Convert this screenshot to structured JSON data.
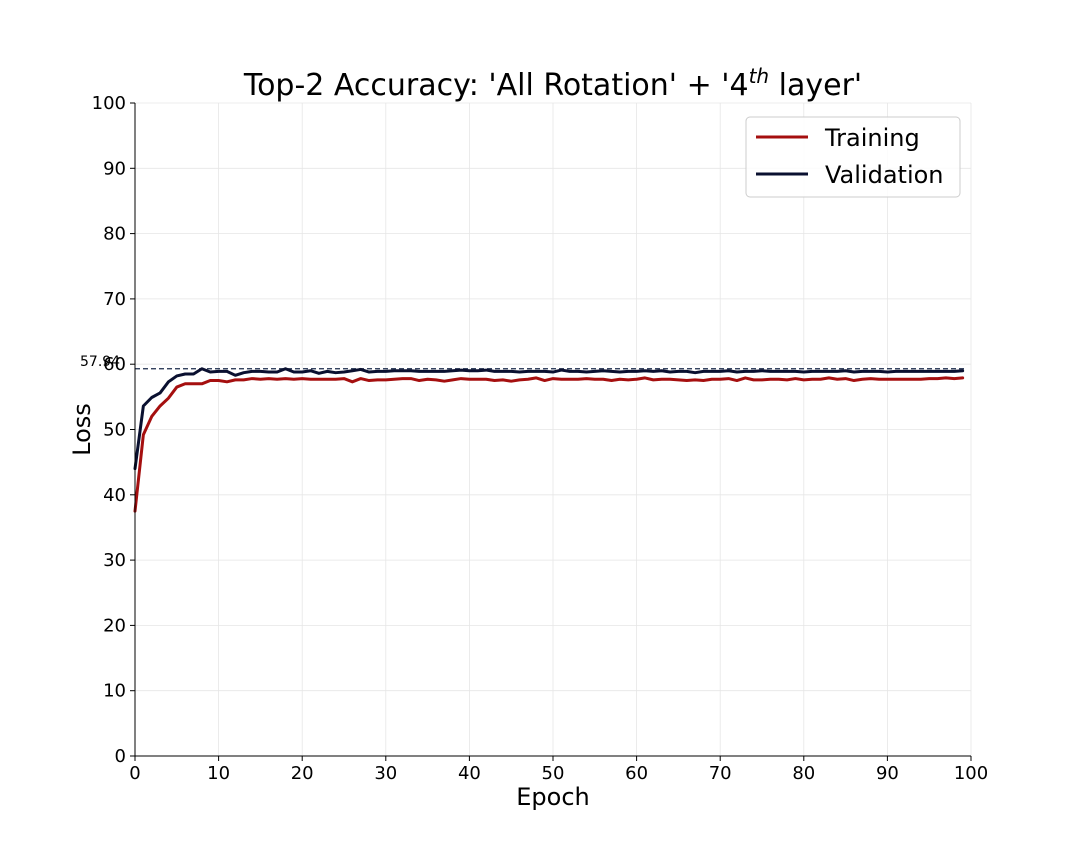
{
  "chart_data": {
    "type": "line",
    "title_parts": {
      "prefix": "Top-2 Accuracy: 'All Rotation' + '4",
      "sup": "th",
      "suffix": " layer'"
    },
    "xlabel": "Epoch",
    "ylabel": "Loss",
    "xlim": [
      0,
      100
    ],
    "ylim": [
      0,
      100
    ],
    "xticks": [
      "0",
      "10",
      "20",
      "30",
      "40",
      "50",
      "60",
      "70",
      "80",
      "90",
      "100"
    ],
    "yticks": [
      "0",
      "10",
      "20",
      "30",
      "40",
      "50",
      "60",
      "70",
      "80",
      "90",
      "100"
    ],
    "grid": true,
    "legend_position": "top-right",
    "reference_line": {
      "y": 59.3,
      "label": "57.94",
      "style": "dashed",
      "color": "#1a2a4a"
    },
    "series": [
      {
        "name": "Training",
        "color": "#a50f0f",
        "x": [
          0,
          1,
          2,
          3,
          4,
          5,
          6,
          7,
          8,
          9,
          10,
          11,
          12,
          13,
          14,
          15,
          16,
          17,
          18,
          19,
          20,
          21,
          22,
          23,
          24,
          25,
          26,
          27,
          28,
          29,
          30,
          31,
          32,
          33,
          34,
          35,
          36,
          37,
          38,
          39,
          40,
          41,
          42,
          43,
          44,
          45,
          46,
          47,
          48,
          49,
          50,
          51,
          52,
          53,
          54,
          55,
          56,
          57,
          58,
          59,
          60,
          61,
          62,
          63,
          64,
          65,
          66,
          67,
          68,
          69,
          70,
          71,
          72,
          73,
          74,
          75,
          76,
          77,
          78,
          79,
          80,
          81,
          82,
          83,
          84,
          85,
          86,
          87,
          88,
          89,
          90,
          91,
          92,
          93,
          94,
          95,
          96,
          97,
          98,
          99
        ],
        "values": [
          37.5,
          49.2,
          52.0,
          53.6,
          54.8,
          56.5,
          57.0,
          57.0,
          57.0,
          57.5,
          57.5,
          57.3,
          57.6,
          57.6,
          57.8,
          57.7,
          57.8,
          57.7,
          57.8,
          57.7,
          57.8,
          57.7,
          57.7,
          57.7,
          57.7,
          57.8,
          57.3,
          57.8,
          57.5,
          57.6,
          57.6,
          57.7,
          57.8,
          57.8,
          57.5,
          57.7,
          57.6,
          57.4,
          57.6,
          57.8,
          57.7,
          57.7,
          57.7,
          57.5,
          57.6,
          57.4,
          57.6,
          57.7,
          57.9,
          57.5,
          57.8,
          57.7,
          57.7,
          57.7,
          57.8,
          57.7,
          57.7,
          57.5,
          57.7,
          57.6,
          57.7,
          57.9,
          57.6,
          57.7,
          57.7,
          57.6,
          57.5,
          57.6,
          57.5,
          57.7,
          57.7,
          57.8,
          57.5,
          57.9,
          57.6,
          57.6,
          57.7,
          57.7,
          57.6,
          57.8,
          57.6,
          57.7,
          57.7,
          57.9,
          57.7,
          57.8,
          57.5,
          57.7,
          57.8,
          57.7,
          57.7,
          57.7,
          57.7,
          57.7,
          57.7,
          57.8,
          57.8,
          57.9,
          57.8,
          57.9
        ]
      },
      {
        "name": "Validation",
        "color": "#0a1030",
        "x": [
          0,
          1,
          2,
          3,
          4,
          5,
          6,
          7,
          8,
          9,
          10,
          11,
          12,
          13,
          14,
          15,
          16,
          17,
          18,
          19,
          20,
          21,
          22,
          23,
          24,
          25,
          26,
          27,
          28,
          29,
          30,
          31,
          32,
          33,
          34,
          35,
          36,
          37,
          38,
          39,
          40,
          41,
          42,
          43,
          44,
          45,
          46,
          47,
          48,
          49,
          50,
          51,
          52,
          53,
          54,
          55,
          56,
          57,
          58,
          59,
          60,
          61,
          62,
          63,
          64,
          65,
          66,
          67,
          68,
          69,
          70,
          71,
          72,
          73,
          74,
          75,
          76,
          77,
          78,
          79,
          80,
          81,
          82,
          83,
          84,
          85,
          86,
          87,
          88,
          89,
          90,
          91,
          92,
          93,
          94,
          95,
          96,
          97,
          98,
          99
        ],
        "values": [
          44.0,
          53.6,
          54.9,
          55.6,
          57.3,
          58.2,
          58.5,
          58.5,
          59.3,
          58.8,
          58.9,
          58.9,
          58.3,
          58.7,
          58.9,
          58.9,
          58.8,
          58.8,
          59.3,
          58.8,
          58.8,
          59.0,
          58.6,
          58.9,
          58.7,
          58.8,
          59.0,
          59.2,
          58.8,
          58.9,
          58.9,
          59.0,
          59.0,
          59.0,
          58.9,
          58.9,
          58.9,
          58.9,
          59.0,
          59.1,
          59.0,
          59.0,
          59.1,
          58.9,
          58.9,
          58.9,
          58.8,
          58.9,
          58.9,
          58.9,
          58.8,
          59.1,
          58.9,
          58.9,
          58.8,
          58.9,
          59.0,
          58.9,
          58.8,
          58.9,
          58.9,
          59.0,
          58.9,
          59.0,
          58.8,
          58.9,
          58.9,
          58.7,
          58.9,
          58.9,
          58.9,
          59.0,
          58.8,
          58.9,
          58.9,
          59.0,
          58.9,
          58.9,
          58.9,
          58.9,
          58.8,
          58.9,
          58.9,
          58.9,
          58.9,
          59.0,
          58.8,
          58.9,
          58.9,
          58.9,
          58.8,
          58.9,
          58.9,
          58.9,
          58.9,
          58.9,
          58.9,
          58.9,
          58.9,
          59.0
        ]
      }
    ]
  }
}
